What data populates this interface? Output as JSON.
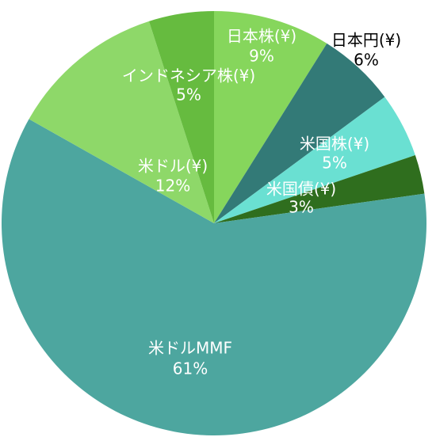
{
  "chart_data": {
    "type": "pie",
    "categories": [
      "日本株(¥)",
      "日本円(¥)",
      "米国株(¥)",
      "米国債(¥)",
      "米ドルMMF",
      "米ドル(¥)",
      "インドネシア株(¥)"
    ],
    "values": [
      9,
      6,
      5,
      3,
      61,
      12,
      5
    ],
    "value_labels": [
      "9%",
      "6%",
      "5%",
      "3%",
      "61%",
      "12%",
      "5%"
    ],
    "colors": [
      "#86d65c",
      "#337a77",
      "#6ae0d2",
      "#2f6e1e",
      "#4da69f",
      "#8ed869",
      "#66bb3f"
    ]
  }
}
